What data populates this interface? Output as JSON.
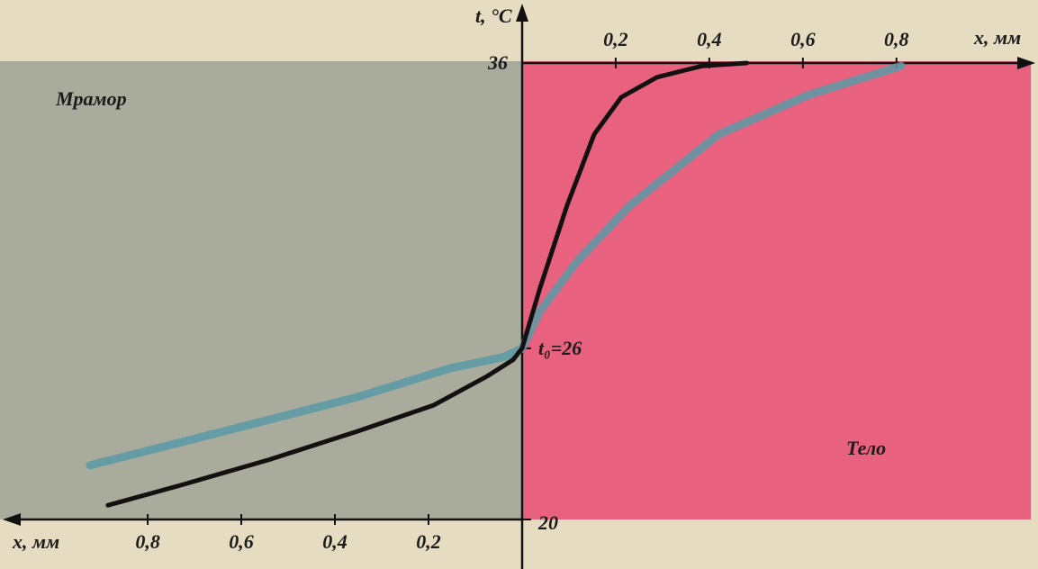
{
  "chart_data": {
    "type": "line",
    "y_axis_label": "t, °C",
    "x_axis_label_right": "x, мм",
    "x_axis_label_left": "x, мм",
    "region_left": "Мрамор",
    "region_right": "Тело",
    "xlim": [
      -1.106,
      1.087
    ],
    "ylim": [
      20,
      36
    ],
    "xticks": [
      {
        "value": -0.8,
        "label": "0,8"
      },
      {
        "value": -0.6,
        "label": "0,6"
      },
      {
        "value": -0.4,
        "label": "0,4"
      },
      {
        "value": -0.2,
        "label": "0,2"
      },
      {
        "value": 0.2,
        "label": "0,2"
      },
      {
        "value": 0.4,
        "label": "0,4"
      },
      {
        "value": 0.6,
        "label": "0,6"
      },
      {
        "value": 0.8,
        "label": "0,8"
      }
    ],
    "yticks": [
      20,
      {
        "value": 26,
        "label": "t₀=26"
      },
      36
    ],
    "series": [
      {
        "color": "#141010",
        "x": [
          -0.885,
          -0.73,
          -0.54,
          -0.35,
          -0.19,
          -0.077,
          -0.019,
          0,
          0.038,
          0.096,
          0.154,
          0.212,
          0.288,
          0.385,
          0.48
        ],
        "values": [
          20.5,
          21.2,
          22.1,
          23.1,
          24.0,
          25.0,
          25.6,
          26,
          28.1,
          31.0,
          33.5,
          34.8,
          35.5,
          35.9,
          36
        ]
      },
      {
        "color": "#5a9aa6",
        "x": [
          -0.923,
          -0.73,
          -0.54,
          -0.35,
          -0.154,
          -0.038,
          0,
          0.038,
          0.115,
          0.23,
          0.42,
          0.615,
          0.81
        ],
        "values": [
          21.9,
          22.7,
          23.5,
          24.3,
          25.3,
          25.7,
          26,
          27.3,
          29.0,
          31.0,
          33.5,
          34.9,
          35.9
        ]
      }
    ]
  }
}
